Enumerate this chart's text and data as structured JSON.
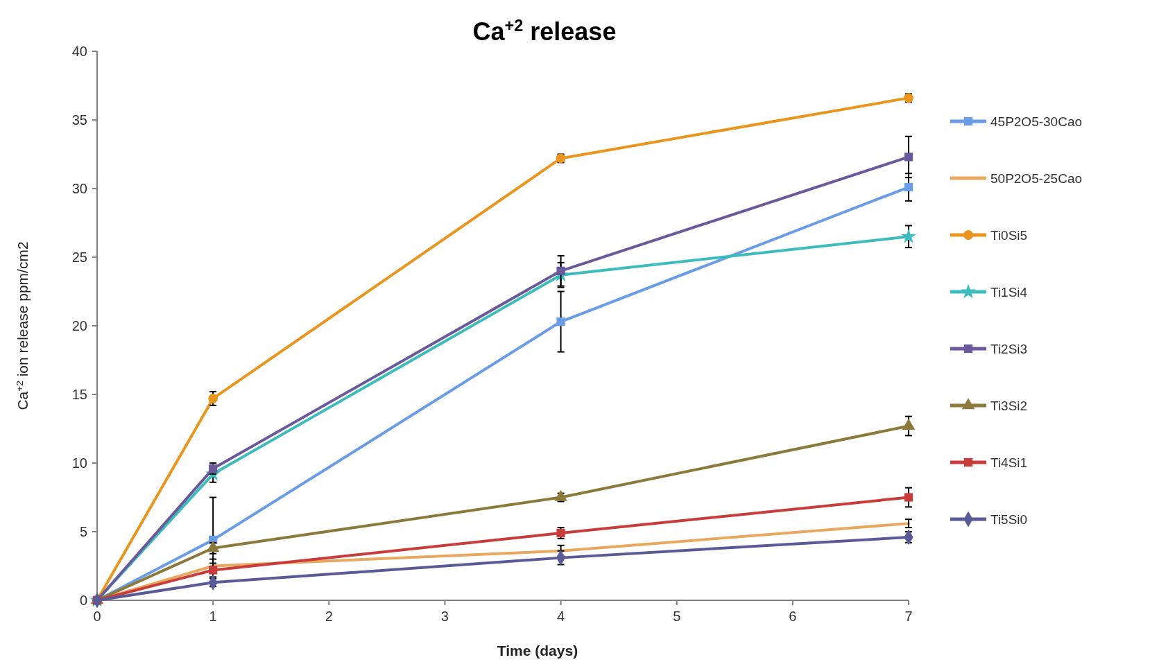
{
  "chart_data": {
    "type": "line",
    "title": "Ca$^{+2}$ release",
    "xlabel": "Time (days)",
    "ylabel": "Ca$^{+2}$ ion release ppm/cm2",
    "x": [
      0,
      1,
      4,
      7
    ],
    "xlim": [
      0,
      7
    ],
    "xticks": [
      0,
      1,
      2,
      3,
      4,
      5,
      6,
      7
    ],
    "ylim": [
      0,
      40
    ],
    "yticks": [
      0,
      5,
      10,
      15,
      20,
      25,
      30,
      35,
      40
    ],
    "grid": false,
    "legend": "right",
    "line_style": "solid",
    "series": [
      {
        "name": "45P2O5-30Cao",
        "color": "#6a9de6",
        "marker": "square",
        "values": [
          0,
          4.4,
          20.3,
          30.1
        ],
        "errors": [
          null,
          3.1,
          2.2,
          1.0
        ]
      },
      {
        "name": "50P2O5-25Cao",
        "color": "#e8a860",
        "marker": "none",
        "values": [
          0,
          2.5,
          3.6,
          5.6
        ],
        "errors": [
          null,
          0.5,
          0.4,
          0.3
        ]
      },
      {
        "name": "Ti0Si5",
        "color": "#e8961e",
        "marker": "circle",
        "values": [
          0,
          14.7,
          32.2,
          36.6
        ],
        "errors": [
          null,
          0.5,
          0.3,
          0.3
        ]
      },
      {
        "name": "Ti1Si4",
        "color": "#3cbcbc",
        "marker": "star",
        "values": [
          0,
          9.2,
          23.7,
          26.5
        ],
        "errors": [
          null,
          0.6,
          0.9,
          0.8
        ]
      },
      {
        "name": "Ti2Si3",
        "color": "#6a5a9c",
        "marker": "square",
        "values": [
          0,
          9.6,
          24.0,
          32.3
        ],
        "errors": [
          null,
          0.4,
          1.1,
          1.5
        ]
      },
      {
        "name": "Ti3Si2",
        "color": "#8c7a3c",
        "marker": "triangle",
        "values": [
          0,
          3.8,
          7.5,
          12.7
        ],
        "errors": [
          null,
          0.4,
          0.3,
          0.7
        ]
      },
      {
        "name": "Ti4Si1",
        "color": "#c83c3c",
        "marker": "square",
        "values": [
          0,
          2.2,
          4.9,
          7.5
        ],
        "errors": [
          null,
          0.5,
          0.4,
          0.7
        ]
      },
      {
        "name": "Ti5Si0",
        "color": "#5a5a96",
        "marker": "diamond",
        "values": [
          0,
          1.3,
          3.1,
          4.6
        ],
        "errors": [
          null,
          0.3,
          0.5,
          0.4
        ]
      }
    ]
  }
}
